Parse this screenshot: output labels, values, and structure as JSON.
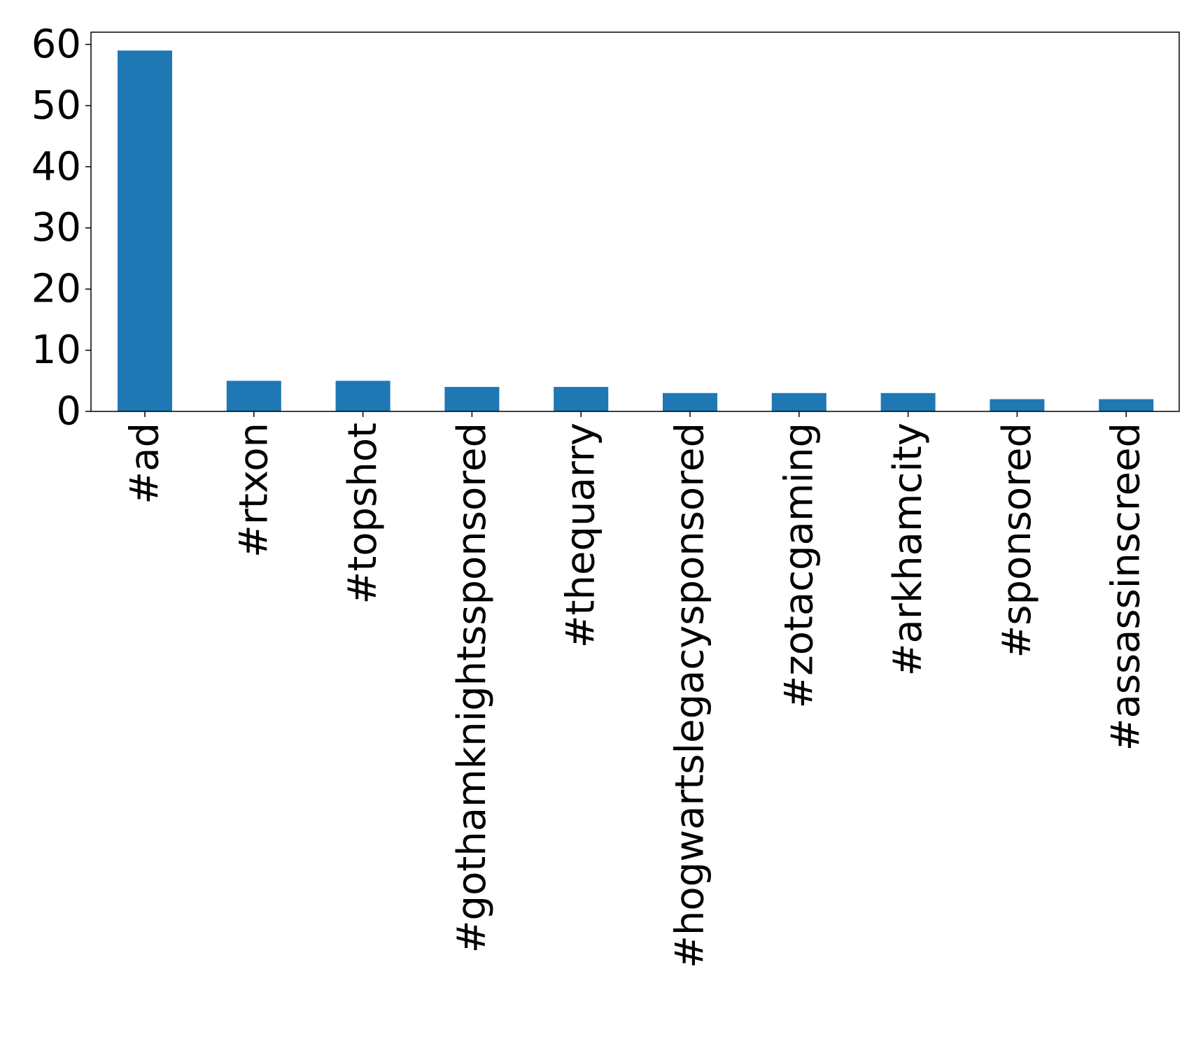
{
  "chart_data": {
    "type": "bar",
    "title": "",
    "xlabel": "",
    "ylabel": "",
    "categories": [
      "#ad",
      "#rtxon",
      "#topshot",
      "#gothamknightssponsored",
      "#thequarry",
      "#hogwartslegacysponsored",
      "#zotacgaming",
      "#arkhamcity",
      "#sponsored",
      "#assassinscreed"
    ],
    "values": [
      59,
      5,
      5,
      4,
      4,
      3,
      3,
      3,
      2,
      2
    ],
    "ylim": [
      0,
      62
    ],
    "yticks": [
      0,
      10,
      20,
      30,
      40,
      50,
      60
    ],
    "bar_color": "#1f77b4",
    "grid": false,
    "legend": "none"
  }
}
